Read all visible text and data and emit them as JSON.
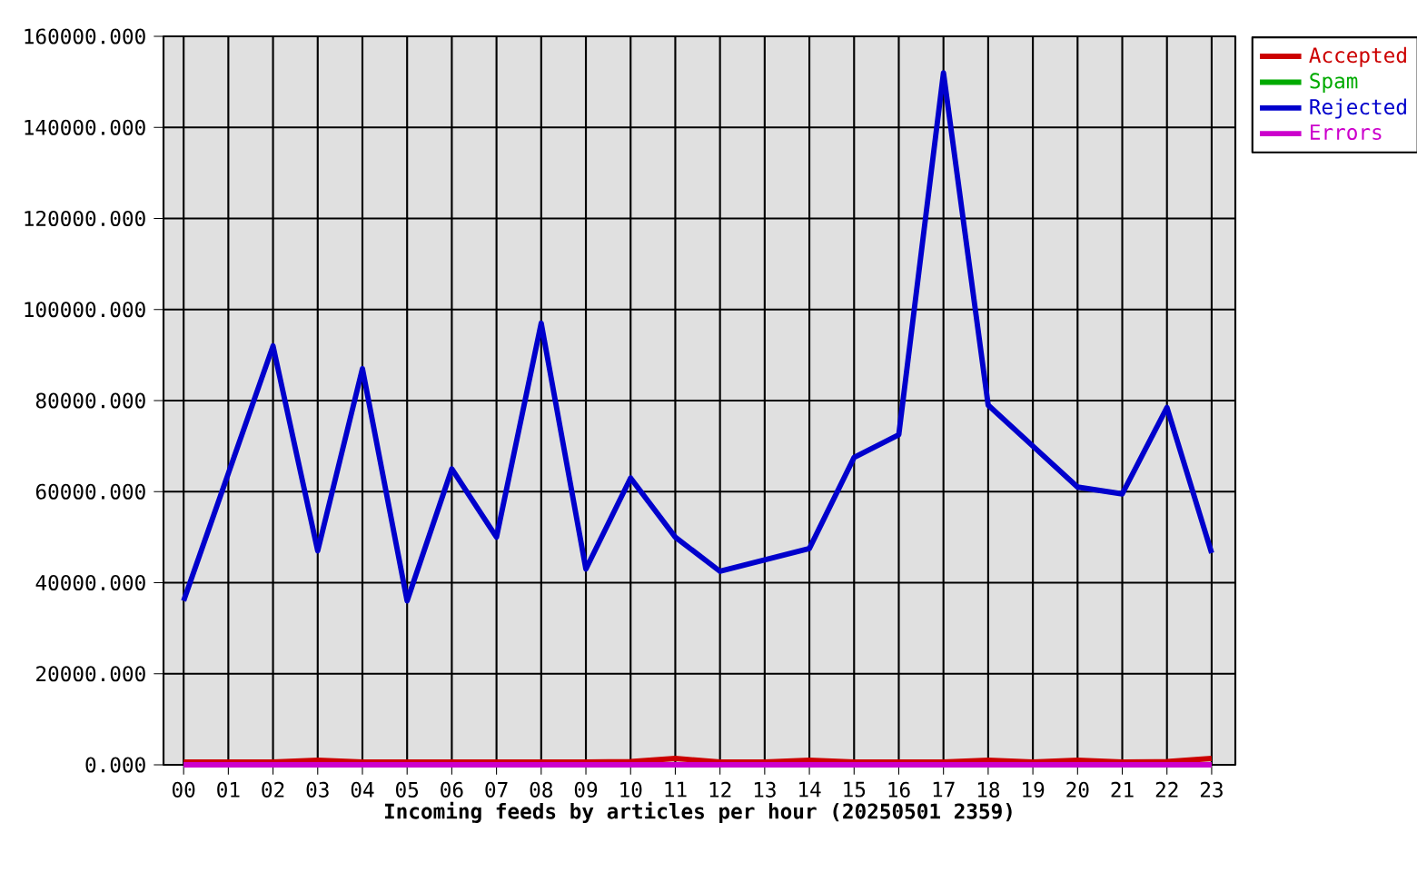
{
  "chart_data": {
    "type": "line",
    "xlabel": "Incoming feeds by articles per hour (20250501 2359)",
    "categories": [
      "00",
      "01",
      "02",
      "03",
      "04",
      "05",
      "06",
      "07",
      "08",
      "09",
      "10",
      "11",
      "12",
      "13",
      "14",
      "15",
      "16",
      "17",
      "18",
      "19",
      "20",
      "21",
      "22",
      "23"
    ],
    "series": [
      {
        "name": "Accepted",
        "color": "#cc0000",
        "values": [
          600,
          600,
          600,
          1000,
          600,
          600,
          600,
          600,
          600,
          600,
          700,
          1400,
          600,
          600,
          1000,
          600,
          600,
          600,
          1000,
          600,
          1000,
          600,
          700,
          1400
        ]
      },
      {
        "name": "Spam",
        "color": "#00aa00",
        "values": [
          null,
          null,
          null,
          null,
          null,
          null,
          null,
          null,
          null,
          null,
          null,
          null,
          null,
          null,
          null,
          null,
          null,
          null,
          null,
          null,
          null,
          null,
          null,
          null
        ]
      },
      {
        "name": "Rejected",
        "color": "#0000cc",
        "values": [
          36000,
          64000,
          92000,
          47000,
          87000,
          36000,
          65000,
          50000,
          97000,
          43000,
          63000,
          50000,
          42500,
          45000,
          47500,
          67500,
          72500,
          152000,
          79000,
          70000,
          61000,
          59500,
          78500,
          46500
        ]
      },
      {
        "name": "Errors",
        "color": "#cc00cc",
        "values": [
          0,
          0,
          0,
          0,
          0,
          0,
          0,
          0,
          0,
          0,
          0,
          0,
          0,
          0,
          0,
          0,
          0,
          0,
          0,
          0,
          0,
          0,
          0,
          0
        ]
      }
    ],
    "ylim": [
      0,
      160000
    ],
    "yticks": [
      {
        "value": 0,
        "label": "0.000"
      },
      {
        "value": 20000,
        "label": "20000.000"
      },
      {
        "value": 40000,
        "label": "40000.000"
      },
      {
        "value": 60000,
        "label": "60000.000"
      },
      {
        "value": 80000,
        "label": "80000.000"
      },
      {
        "value": 100000,
        "label": "100000.000"
      },
      {
        "value": 120000,
        "label": "120000.000"
      },
      {
        "value": 140000,
        "label": "140000.000"
      },
      {
        "value": 160000,
        "label": "160000.000"
      }
    ],
    "grid": true,
    "legend": "top right"
  }
}
